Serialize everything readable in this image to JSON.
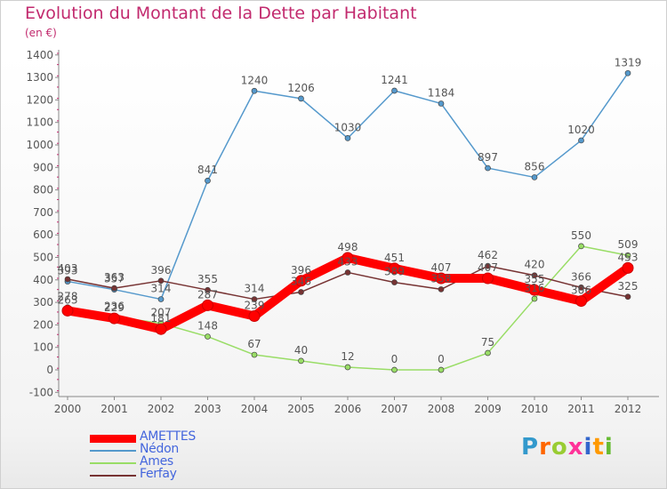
{
  "chart_data": {
    "type": "line",
    "title": "Evolution du Montant de la Dette par Habitant",
    "subtitle": "(en €)",
    "categories": [
      "2000",
      "2001",
      "2002",
      "2003",
      "2004",
      "2005",
      "2006",
      "2007",
      "2008",
      "2009",
      "2010",
      "2011",
      "2012"
    ],
    "ylim": [
      -100,
      1400
    ],
    "yticks": [
      -100,
      0,
      100,
      200,
      300,
      400,
      500,
      600,
      700,
      800,
      900,
      1000,
      1100,
      1200,
      1300,
      1400
    ],
    "grid": false,
    "legend_position": "bottom-left",
    "series": [
      {
        "name": "AMETTES",
        "color": "#ff0000",
        "values": [
          263,
          229,
          181,
          287,
          239,
          396,
          498,
          451,
          407,
          407,
          355,
          306,
          453
        ]
      },
      {
        "name": "Nédon",
        "color": "#5599cc",
        "values": [
          393,
          357,
          314,
          841,
          1240,
          1206,
          1030,
          1241,
          1184,
          897,
          856,
          1020,
          1319
        ]
      },
      {
        "name": "Ames",
        "color": "#99dd66",
        "values": [
          278,
          236,
          207,
          148,
          67,
          40,
          12,
          0,
          0,
          75,
          316,
          550,
          509
        ]
      },
      {
        "name": "Ferfay",
        "color": "#773333",
        "values": [
          403,
          363,
          396,
          355,
          314,
          346,
          433,
          389,
          358,
          462,
          420,
          366,
          325
        ]
      }
    ]
  },
  "brand": {
    "text": "Proxiti",
    "colors": [
      "#3399cc",
      "#ff6600",
      "#99cc33",
      "#ff3399",
      "#3366cc",
      "#ff9900",
      "#66bb33"
    ]
  }
}
